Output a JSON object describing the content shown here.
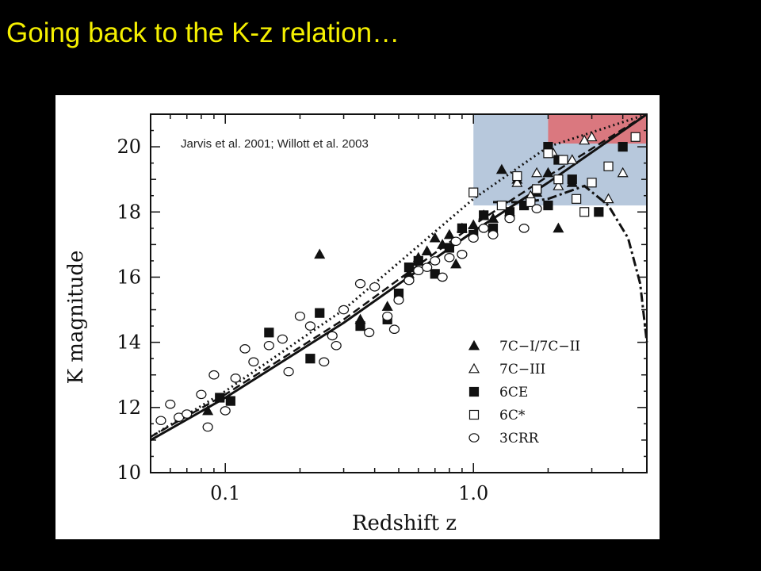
{
  "slide": {
    "title": "Going back to the K-z relation…"
  },
  "colors": {
    "background": "#000000",
    "title": "#f5f000",
    "highlight_blue": "#9fb6d0",
    "highlight_red": "#e06a6e"
  },
  "chart_data": {
    "type": "scatter",
    "citation": "Jarvis et al. 2001; Willott et al. 2003",
    "xlabel": "Redshift z",
    "ylabel": "K magnitude",
    "x_scale": "log",
    "xlim": [
      0.05,
      5.0
    ],
    "ylim": [
      10,
      21
    ],
    "x_ticks": [
      {
        "value": 0.1,
        "label": "0.1"
      },
      {
        "value": 1.0,
        "label": "1.0"
      }
    ],
    "y_ticks": [
      {
        "value": 10,
        "label": "10"
      },
      {
        "value": 12,
        "label": "12"
      },
      {
        "value": 14,
        "label": "14"
      },
      {
        "value": 16,
        "label": "16"
      },
      {
        "value": 18,
        "label": "18"
      },
      {
        "value": 20,
        "label": "20"
      }
    ],
    "highlight_regions": [
      {
        "color": "blue",
        "x": [
          1.0,
          5.0
        ],
        "y": [
          18.2,
          21.0
        ]
      },
      {
        "color": "red",
        "x": [
          2.0,
          5.0
        ],
        "y": [
          20.1,
          21.0
        ]
      }
    ],
    "series": [
      {
        "name": "7C−I/7C−II",
        "marker": "triangle-filled",
        "x": [
          0.085,
          0.24,
          0.35,
          0.45,
          0.55,
          0.6,
          0.65,
          0.7,
          0.75,
          0.8,
          0.9,
          1.0,
          1.1,
          1.2,
          1.3,
          1.5,
          1.8,
          2.2,
          2.5,
          1.4,
          2.0,
          0.85
        ],
        "y": [
          11.9,
          16.7,
          14.7,
          15.1,
          16.1,
          16.6,
          16.8,
          17.2,
          17.0,
          17.3,
          17.5,
          17.6,
          17.9,
          17.8,
          19.3,
          19.0,
          18.6,
          17.5,
          18.9,
          18.0,
          19.2,
          16.4
        ]
      },
      {
        "name": "7C−III",
        "marker": "triangle-open",
        "x": [
          1.5,
          1.8,
          2.1,
          2.5,
          3.0,
          3.5,
          4.0,
          2.2,
          1.7,
          2.8
        ],
        "y": [
          18.9,
          19.2,
          19.8,
          19.6,
          20.3,
          18.4,
          19.2,
          18.8,
          18.5,
          20.2
        ]
      },
      {
        "name": "6CE",
        "marker": "square-filled",
        "x": [
          0.095,
          0.105,
          0.15,
          0.22,
          0.24,
          0.35,
          0.45,
          0.5,
          0.55,
          0.6,
          0.7,
          0.8,
          0.9,
          1.0,
          1.2,
          1.4,
          1.6,
          1.8,
          2.0,
          2.2,
          2.5,
          3.2,
          4.0,
          2.0,
          1.1
        ],
        "y": [
          12.3,
          12.2,
          14.3,
          13.5,
          14.9,
          14.5,
          14.7,
          15.5,
          16.3,
          16.5,
          16.1,
          16.9,
          17.5,
          17.3,
          17.5,
          18.0,
          18.2,
          18.7,
          20.0,
          19.6,
          19.0,
          18.0,
          20.0,
          18.2,
          17.9
        ]
      },
      {
        "name": "6C*",
        "marker": "square-open",
        "x": [
          1.0,
          1.3,
          1.5,
          1.7,
          2.0,
          2.3,
          2.6,
          3.0,
          3.5,
          4.5,
          1.8,
          2.2,
          2.8
        ],
        "y": [
          18.6,
          18.2,
          19.1,
          18.3,
          19.8,
          19.6,
          18.4,
          18.9,
          19.4,
          20.3,
          18.7,
          19.0,
          18.0
        ]
      },
      {
        "name": "3CRR",
        "marker": "circle-open",
        "x": [
          0.055,
          0.06,
          0.065,
          0.07,
          0.08,
          0.085,
          0.09,
          0.1,
          0.11,
          0.13,
          0.15,
          0.17,
          0.2,
          0.22,
          0.25,
          0.27,
          0.3,
          0.35,
          0.4,
          0.45,
          0.5,
          0.55,
          0.6,
          0.65,
          0.7,
          0.75,
          0.8,
          0.85,
          0.9,
          1.0,
          1.1,
          1.2,
          1.4,
          1.6,
          1.8,
          0.12,
          0.18,
          0.28,
          0.38,
          0.48
        ],
        "y": [
          11.6,
          12.1,
          11.7,
          11.8,
          12.4,
          11.4,
          13.0,
          11.9,
          12.9,
          13.4,
          13.9,
          14.1,
          14.8,
          14.5,
          13.4,
          14.2,
          15.0,
          15.8,
          15.7,
          14.8,
          15.3,
          15.9,
          16.2,
          16.3,
          16.5,
          16.0,
          16.6,
          17.1,
          16.7,
          17.2,
          17.5,
          17.3,
          17.8,
          17.5,
          18.1,
          13.8,
          13.1,
          13.9,
          14.3,
          14.4
        ]
      }
    ],
    "curves": [
      {
        "style": "solid",
        "x": [
          0.05,
          0.1,
          0.3,
          1.0,
          2.0,
          5.0
        ],
        "y": [
          11.0,
          12.3,
          14.6,
          17.4,
          18.9,
          21.0
        ]
      },
      {
        "style": "dashed",
        "x": [
          0.05,
          0.1,
          0.3,
          1.0,
          2.0,
          5.0
        ],
        "y": [
          11.1,
          12.4,
          14.7,
          17.6,
          19.1,
          21.2
        ]
      },
      {
        "style": "dotted",
        "x": [
          0.05,
          0.1,
          0.3,
          1.0,
          2.0,
          5.0
        ],
        "y": [
          11.1,
          12.5,
          15.0,
          18.4,
          20.0,
          21.5
        ]
      },
      {
        "style": "dash-dot",
        "x": [
          1.2,
          1.6,
          2.0,
          2.8,
          3.5,
          4.2,
          4.7,
          5.0
        ],
        "y": [
          18.3,
          18.3,
          18.4,
          18.8,
          18.2,
          17.2,
          15.8,
          14.0
        ]
      }
    ]
  }
}
